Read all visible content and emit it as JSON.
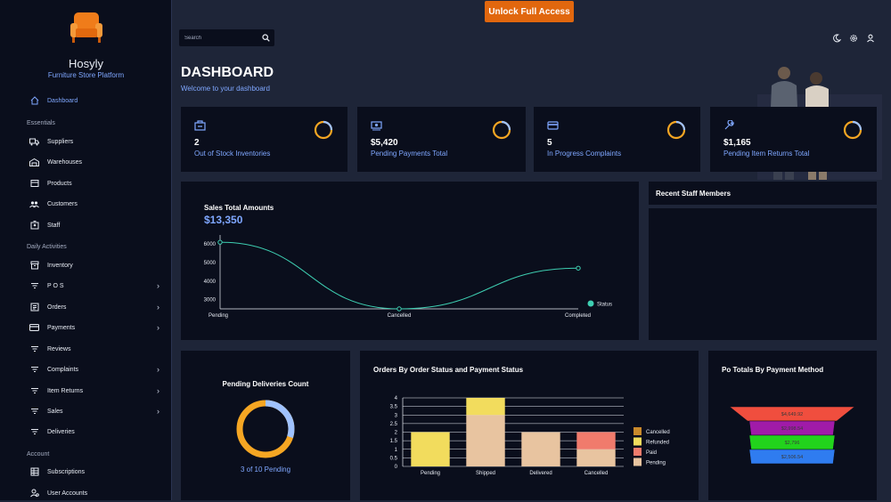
{
  "brand": {
    "name": "Hosyly",
    "tagline": "Furniture Store Platform"
  },
  "sidebar": {
    "items": [
      {
        "label": "Dashboard",
        "icon": "home-icon",
        "active": true
      },
      {
        "label": "Suppliers",
        "icon": "truck-icon"
      },
      {
        "label": "Warehouses",
        "icon": "warehouse-icon"
      },
      {
        "label": "Products",
        "icon": "box-icon"
      },
      {
        "label": "Customers",
        "icon": "users-icon"
      },
      {
        "label": "Staff",
        "icon": "badge-icon"
      },
      {
        "label": "Inventory",
        "icon": "archive-icon"
      },
      {
        "label": "P O S",
        "icon": "filter-icon",
        "chevron": true
      },
      {
        "label": "Orders",
        "icon": "list-icon",
        "chevron": true
      },
      {
        "label": "Payments",
        "icon": "card-icon",
        "chevron": true
      },
      {
        "label": "Reviews",
        "icon": "filter-icon"
      },
      {
        "label": "Complaints",
        "icon": "filter-icon",
        "chevron": true
      },
      {
        "label": "Item Returns",
        "icon": "filter-icon",
        "chevron": true
      },
      {
        "label": "Sales",
        "icon": "filter-icon",
        "chevron": true
      },
      {
        "label": "Deliveries",
        "icon": "filter-icon"
      },
      {
        "label": "Subscriptions",
        "icon": "grid-icon"
      },
      {
        "label": "User Accounts",
        "icon": "user-gear-icon"
      }
    ],
    "sections": {
      "essentials": "Essentials",
      "daily": "Daily Activities",
      "account": "Account"
    }
  },
  "topbar": {
    "unlock_label": "Unlock Full Access",
    "search_placeholder": "Search"
  },
  "header": {
    "title": "DASHBOARD",
    "subtitle": "Welcome to your dashboard"
  },
  "stats": [
    {
      "value": "2",
      "label": "Out of Stock Inventories",
      "icon": "box-icon"
    },
    {
      "value": "$5,420",
      "label": "Pending Payments Total",
      "icon": "cash-icon"
    },
    {
      "value": "5",
      "label": "In Progress Complaints",
      "icon": "card-icon"
    },
    {
      "value": "$1,165",
      "label": "Pending Item Returns Total",
      "icon": "wrench-icon"
    }
  ],
  "sales": {
    "title": "Sales Total Amounts",
    "total": "$13,350"
  },
  "staff": {
    "title": "Recent Staff Members"
  },
  "deliveries": {
    "title": "Pending Deliveries Count",
    "caption": "3 of 10 Pending",
    "pending": 3,
    "total": 10
  },
  "orders_title": "Orders By Order Status and Payment Status",
  "po_title": "Po Totals By Payment Method",
  "colors": {
    "accent": "#7fa7ff",
    "orange": "#f5a623",
    "unlock": "#e1670e",
    "line": "#3ecfb2"
  },
  "chart_data": [
    {
      "type": "line",
      "title": "Sales Total Amounts",
      "categories": [
        "Pending",
        "Cancelled",
        "Completed"
      ],
      "series": [
        {
          "name": "Status",
          "values": [
            6100,
            2500,
            4700
          ]
        }
      ],
      "yticks": [
        3000,
        4000,
        5000,
        6000
      ],
      "ylim": [
        2500,
        6300
      ],
      "legend": "right"
    },
    {
      "type": "bar",
      "title": "Orders By Order Status and Payment Status",
      "categories": [
        "Pending",
        "Shipped",
        "Delivered",
        "Cancelled"
      ],
      "yticks": [
        "0",
        "0.5",
        "1",
        "1.5",
        "2",
        "2.5",
        "3",
        "3.5",
        "4"
      ],
      "ylim": [
        0,
        4
      ],
      "series": [
        {
          "name": "Cancelled",
          "color": "#c98a2b",
          "values": [
            0,
            0,
            0,
            0
          ]
        },
        {
          "name": "Refunded",
          "color": "#f2dc5d",
          "values": [
            2,
            1,
            0,
            0
          ]
        },
        {
          "name": "Paid",
          "color": "#f07b6c",
          "values": [
            0,
            0,
            0,
            1
          ]
        },
        {
          "name": "Pending",
          "color": "#e8c4a0",
          "values": [
            0,
            3,
            2,
            1
          ]
        }
      ],
      "legend": "right"
    },
    {
      "type": "funnel",
      "title": "Po Totals By Payment Method",
      "values": [
        {
          "label": "$4,649.92",
          "color": "#f04e3e"
        },
        {
          "label": "$2,998.54",
          "color": "#a01ba8"
        },
        {
          "label": "$2,796",
          "color": "#22d31c"
        },
        {
          "label": "$2,506.54",
          "color": "#2f7cf0"
        }
      ]
    }
  ]
}
